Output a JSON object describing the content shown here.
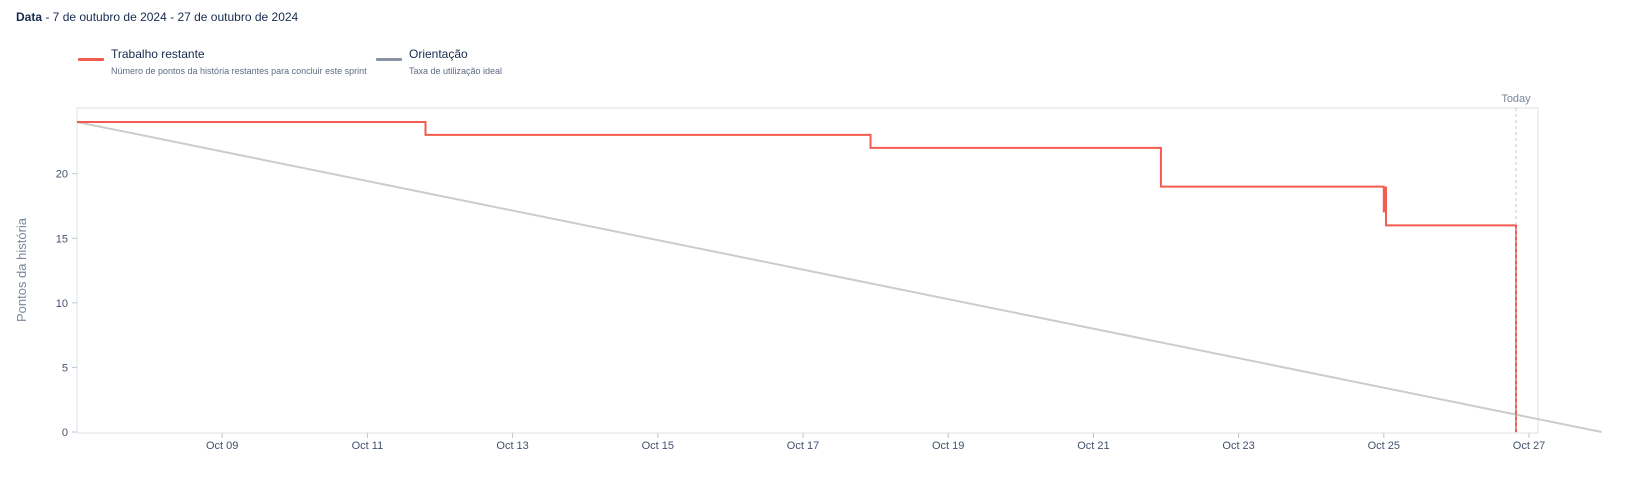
{
  "header": {
    "date_label": "Data",
    "date_range": " - 7 de outubro de 2024 - 27 de outubro de 2024"
  },
  "legend": [
    {
      "title": "Trabalho restante",
      "description": "Número de pontos da história restantes para concluir este sprint",
      "color": "#f15c4f"
    },
    {
      "title": "Orientação",
      "description": "Taxa de utilização ideal",
      "color": "#8993a4"
    }
  ],
  "chart_data": {
    "type": "line",
    "ylabel": "Pontos da história",
    "xlabel": "",
    "x_ticks": [
      "Oct 09",
      "Oct 11",
      "Oct 13",
      "Oct 15",
      "Oct 17",
      "Oct 19",
      "Oct 21",
      "Oct 23",
      "Oct 25",
      "Oct 27"
    ],
    "y_ticks": [
      0,
      5,
      10,
      15,
      20
    ],
    "ylim": [
      0,
      24
    ],
    "today_label": "Today",
    "today_date": "2024-10-27",
    "series": [
      {
        "name": "Trabalho restante",
        "color": "#f15c4f",
        "step": true,
        "points": [
          [
            "2024-10-07",
            24
          ],
          [
            "2024-10-11",
            24
          ],
          [
            "2024-10-11",
            23
          ],
          [
            "2024-10-17",
            23
          ],
          [
            "2024-10-17",
            22
          ],
          [
            "2024-10-21",
            22
          ],
          [
            "2024-10-21",
            19
          ],
          [
            "2024-10-25",
            19
          ],
          [
            "2024-10-25",
            17
          ],
          [
            "2024-10-25",
            19
          ],
          [
            "2024-10-25",
            16
          ],
          [
            "2024-10-27",
            16
          ],
          [
            "2024-10-27",
            6
          ],
          [
            "2024-10-27",
            5
          ],
          [
            "2024-10-27",
            0
          ]
        ]
      },
      {
        "name": "Orientação",
        "color": "#cccccc",
        "points": [
          [
            "2024-10-07",
            24
          ],
          [
            "2024-10-28",
            0
          ]
        ]
      }
    ]
  }
}
